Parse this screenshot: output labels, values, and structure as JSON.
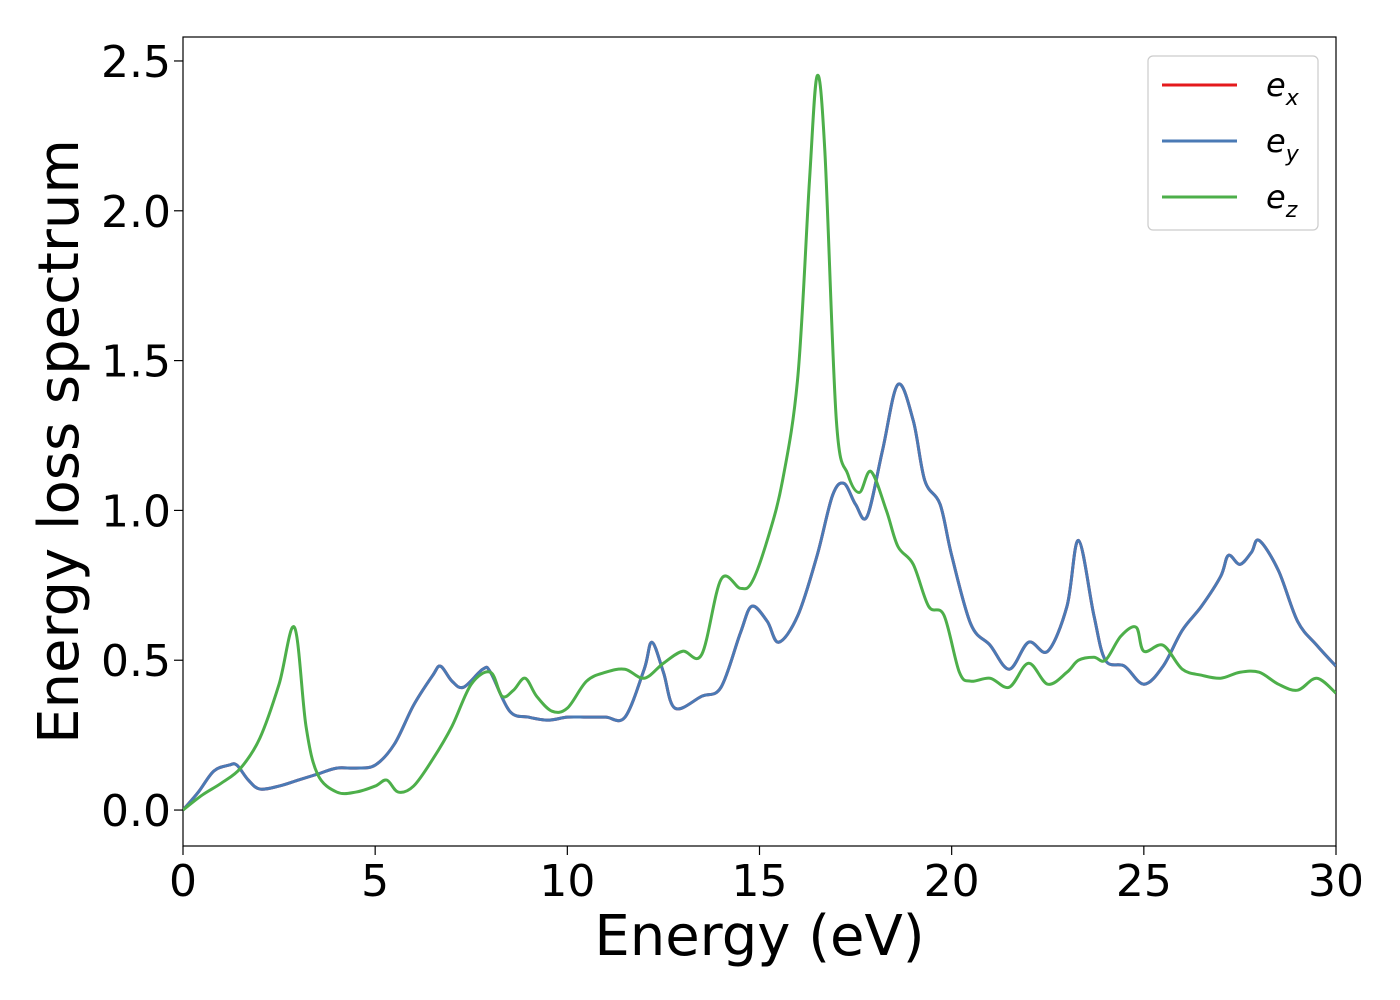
{
  "chart_data": {
    "type": "line",
    "title": "",
    "xlabel": "Energy (eV)",
    "ylabel": "Energy loss spectrum",
    "xlim": [
      0,
      30
    ],
    "ylim": [
      -0.12,
      2.58
    ],
    "xticks": [
      0,
      5,
      10,
      15,
      20,
      25,
      30
    ],
    "xtick_labels": [
      "0",
      "5",
      "10",
      "15",
      "20",
      "25",
      "30"
    ],
    "yticks": [
      0.0,
      0.5,
      1.0,
      1.5,
      2.0,
      2.5
    ],
    "ytick_labels": [
      "0.0",
      "0.5",
      "1.0",
      "1.5",
      "2.0",
      "2.5"
    ],
    "grid": false,
    "legend_position": "top-right",
    "series": [
      {
        "name": "e_x",
        "legend_base": "e",
        "legend_sub": "x",
        "color": "#e41a1c",
        "x": [
          0,
          0.4,
          0.8,
          1.2,
          1.4,
          1.7,
          2.0,
          2.5,
          3.0,
          3.5,
          4.0,
          4.5,
          5.0,
          5.5,
          6.0,
          6.5,
          6.7,
          7.0,
          7.3,
          7.8,
          8.0,
          8.5,
          9.0,
          9.5,
          10.0,
          10.5,
          11.0,
          11.5,
          12.0,
          12.2,
          12.5,
          12.8,
          13.5,
          14.0,
          14.5,
          14.8,
          15.2,
          15.5,
          16.0,
          16.5,
          16.9,
          17.2,
          17.5,
          17.8,
          18.2,
          18.6,
          19.0,
          19.3,
          19.7,
          20.0,
          20.5,
          21.0,
          21.5,
          22.0,
          22.5,
          23.0,
          23.3,
          23.7,
          24.0,
          24.5,
          25.0,
          25.5,
          26.0,
          26.5,
          27.0,
          27.2,
          27.5,
          27.8,
          28.0,
          28.5,
          29.0,
          29.5,
          30.0
        ],
        "y": [
          0.0,
          0.06,
          0.13,
          0.15,
          0.15,
          0.1,
          0.07,
          0.08,
          0.1,
          0.12,
          0.14,
          0.14,
          0.15,
          0.22,
          0.35,
          0.45,
          0.48,
          0.43,
          0.41,
          0.47,
          0.46,
          0.33,
          0.31,
          0.3,
          0.31,
          0.31,
          0.31,
          0.31,
          0.47,
          0.56,
          0.46,
          0.34,
          0.38,
          0.41,
          0.59,
          0.68,
          0.63,
          0.56,
          0.65,
          0.85,
          1.05,
          1.09,
          1.02,
          0.98,
          1.2,
          1.42,
          1.3,
          1.1,
          1.02,
          0.85,
          0.62,
          0.55,
          0.47,
          0.56,
          0.53,
          0.68,
          0.9,
          0.65,
          0.5,
          0.48,
          0.42,
          0.48,
          0.6,
          0.68,
          0.78,
          0.85,
          0.82,
          0.86,
          0.9,
          0.8,
          0.63,
          0.55,
          0.48
        ]
      },
      {
        "name": "e_y",
        "legend_base": "e",
        "legend_sub": "y",
        "color": "#4a7ab5",
        "x": [
          0,
          0.4,
          0.8,
          1.2,
          1.4,
          1.7,
          2.0,
          2.5,
          3.0,
          3.5,
          4.0,
          4.5,
          5.0,
          5.5,
          6.0,
          6.5,
          6.7,
          7.0,
          7.3,
          7.8,
          8.0,
          8.5,
          9.0,
          9.5,
          10.0,
          10.5,
          11.0,
          11.5,
          12.0,
          12.2,
          12.5,
          12.8,
          13.5,
          14.0,
          14.5,
          14.8,
          15.2,
          15.5,
          16.0,
          16.5,
          16.9,
          17.2,
          17.5,
          17.8,
          18.2,
          18.6,
          19.0,
          19.3,
          19.7,
          20.0,
          20.5,
          21.0,
          21.5,
          22.0,
          22.5,
          23.0,
          23.3,
          23.7,
          24.0,
          24.5,
          25.0,
          25.5,
          26.0,
          26.5,
          27.0,
          27.2,
          27.5,
          27.8,
          28.0,
          28.5,
          29.0,
          29.5,
          30.0
        ],
        "y": [
          0.0,
          0.06,
          0.13,
          0.15,
          0.15,
          0.1,
          0.07,
          0.08,
          0.1,
          0.12,
          0.14,
          0.14,
          0.15,
          0.22,
          0.35,
          0.45,
          0.48,
          0.43,
          0.41,
          0.47,
          0.46,
          0.33,
          0.31,
          0.3,
          0.31,
          0.31,
          0.31,
          0.31,
          0.47,
          0.56,
          0.46,
          0.34,
          0.38,
          0.41,
          0.59,
          0.68,
          0.63,
          0.56,
          0.65,
          0.85,
          1.05,
          1.09,
          1.02,
          0.98,
          1.2,
          1.42,
          1.3,
          1.1,
          1.02,
          0.85,
          0.62,
          0.55,
          0.47,
          0.56,
          0.53,
          0.68,
          0.9,
          0.65,
          0.5,
          0.48,
          0.42,
          0.48,
          0.6,
          0.68,
          0.78,
          0.85,
          0.82,
          0.86,
          0.9,
          0.8,
          0.63,
          0.55,
          0.48
        ]
      },
      {
        "name": "e_z",
        "legend_base": "e",
        "legend_sub": "z",
        "color": "#4daf4a",
        "x": [
          0,
          0.5,
          1.0,
          1.5,
          2.0,
          2.5,
          2.9,
          3.2,
          3.5,
          4.0,
          4.5,
          5.0,
          5.3,
          5.6,
          6.0,
          6.5,
          7.0,
          7.5,
          8.0,
          8.3,
          8.6,
          8.9,
          9.2,
          9.6,
          10.0,
          10.5,
          11.0,
          11.5,
          12.0,
          12.5,
          13.0,
          13.5,
          14.0,
          14.5,
          14.8,
          15.2,
          15.6,
          16.0,
          16.3,
          16.5,
          16.7,
          17.0,
          17.3,
          17.6,
          17.9,
          18.3,
          18.6,
          19.0,
          19.4,
          19.8,
          20.2,
          20.5,
          21.0,
          21.5,
          22.0,
          22.5,
          23.0,
          23.3,
          23.7,
          24.0,
          24.4,
          24.8,
          25.0,
          25.5,
          26.0,
          26.5,
          27.0,
          27.5,
          28.0,
          28.5,
          29.0,
          29.5,
          30.0
        ],
        "y": [
          0.0,
          0.05,
          0.09,
          0.14,
          0.24,
          0.42,
          0.61,
          0.28,
          0.12,
          0.06,
          0.06,
          0.08,
          0.1,
          0.06,
          0.08,
          0.17,
          0.28,
          0.42,
          0.46,
          0.38,
          0.4,
          0.44,
          0.38,
          0.33,
          0.34,
          0.43,
          0.46,
          0.47,
          0.44,
          0.49,
          0.53,
          0.52,
          0.77,
          0.74,
          0.76,
          0.9,
          1.1,
          1.45,
          2.1,
          2.45,
          2.2,
          1.3,
          1.12,
          1.06,
          1.13,
          1.0,
          0.88,
          0.82,
          0.68,
          0.65,
          0.46,
          0.43,
          0.44,
          0.41,
          0.49,
          0.42,
          0.46,
          0.5,
          0.51,
          0.5,
          0.58,
          0.61,
          0.53,
          0.55,
          0.47,
          0.45,
          0.44,
          0.46,
          0.46,
          0.42,
          0.4,
          0.44,
          0.39
        ]
      }
    ]
  }
}
